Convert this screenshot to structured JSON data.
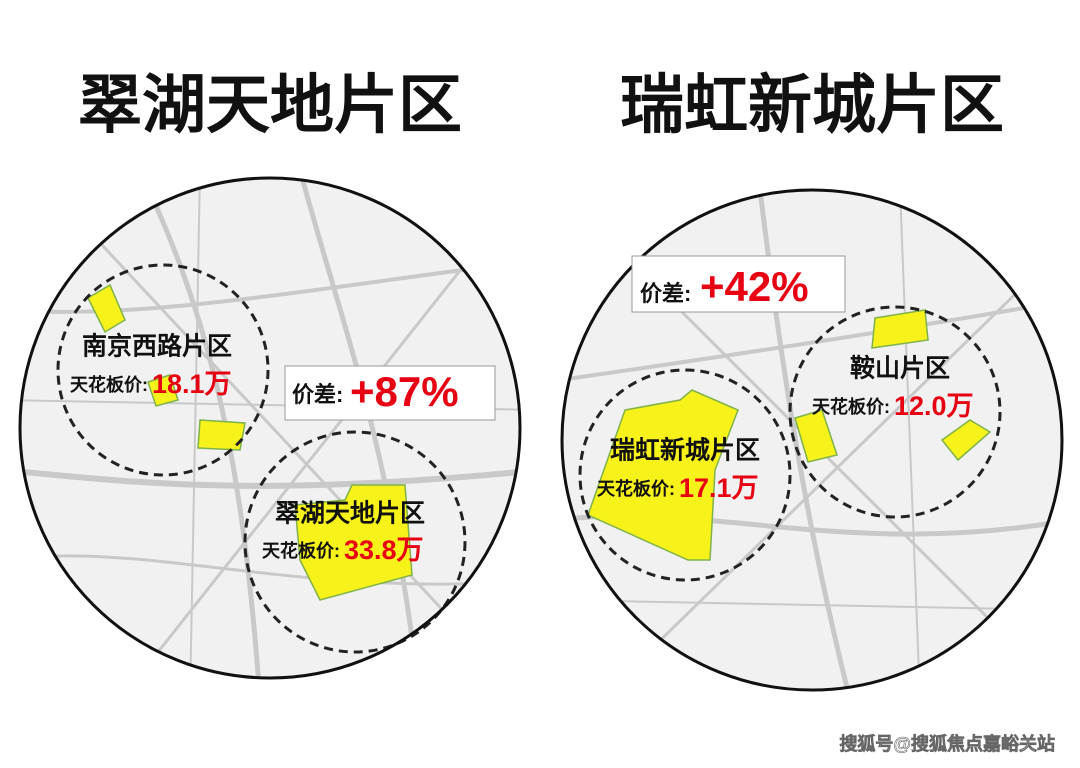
{
  "left": {
    "title": "翠湖天地片区",
    "price_gap": {
      "label": "价差:",
      "value": "+87%"
    },
    "zones": [
      {
        "name": "南京西路片区",
        "price_label": "天花板价:",
        "price": "18.1万"
      },
      {
        "name": "翠湖天地片区",
        "price_label": "天花板价:",
        "price": "33.8万"
      }
    ]
  },
  "right": {
    "title": "瑞虹新城片区",
    "price_gap": {
      "label": "价差:",
      "value": "+42%"
    },
    "zones": [
      {
        "name": "瑞虹新城片区",
        "price_label": "天花板价:",
        "price": "17.1万"
      },
      {
        "name": "鞍山片区",
        "price_label": "天花板价:",
        "price": "12.0万"
      }
    ]
  },
  "watermark": "搜狐号@搜狐焦点嘉峪关站"
}
